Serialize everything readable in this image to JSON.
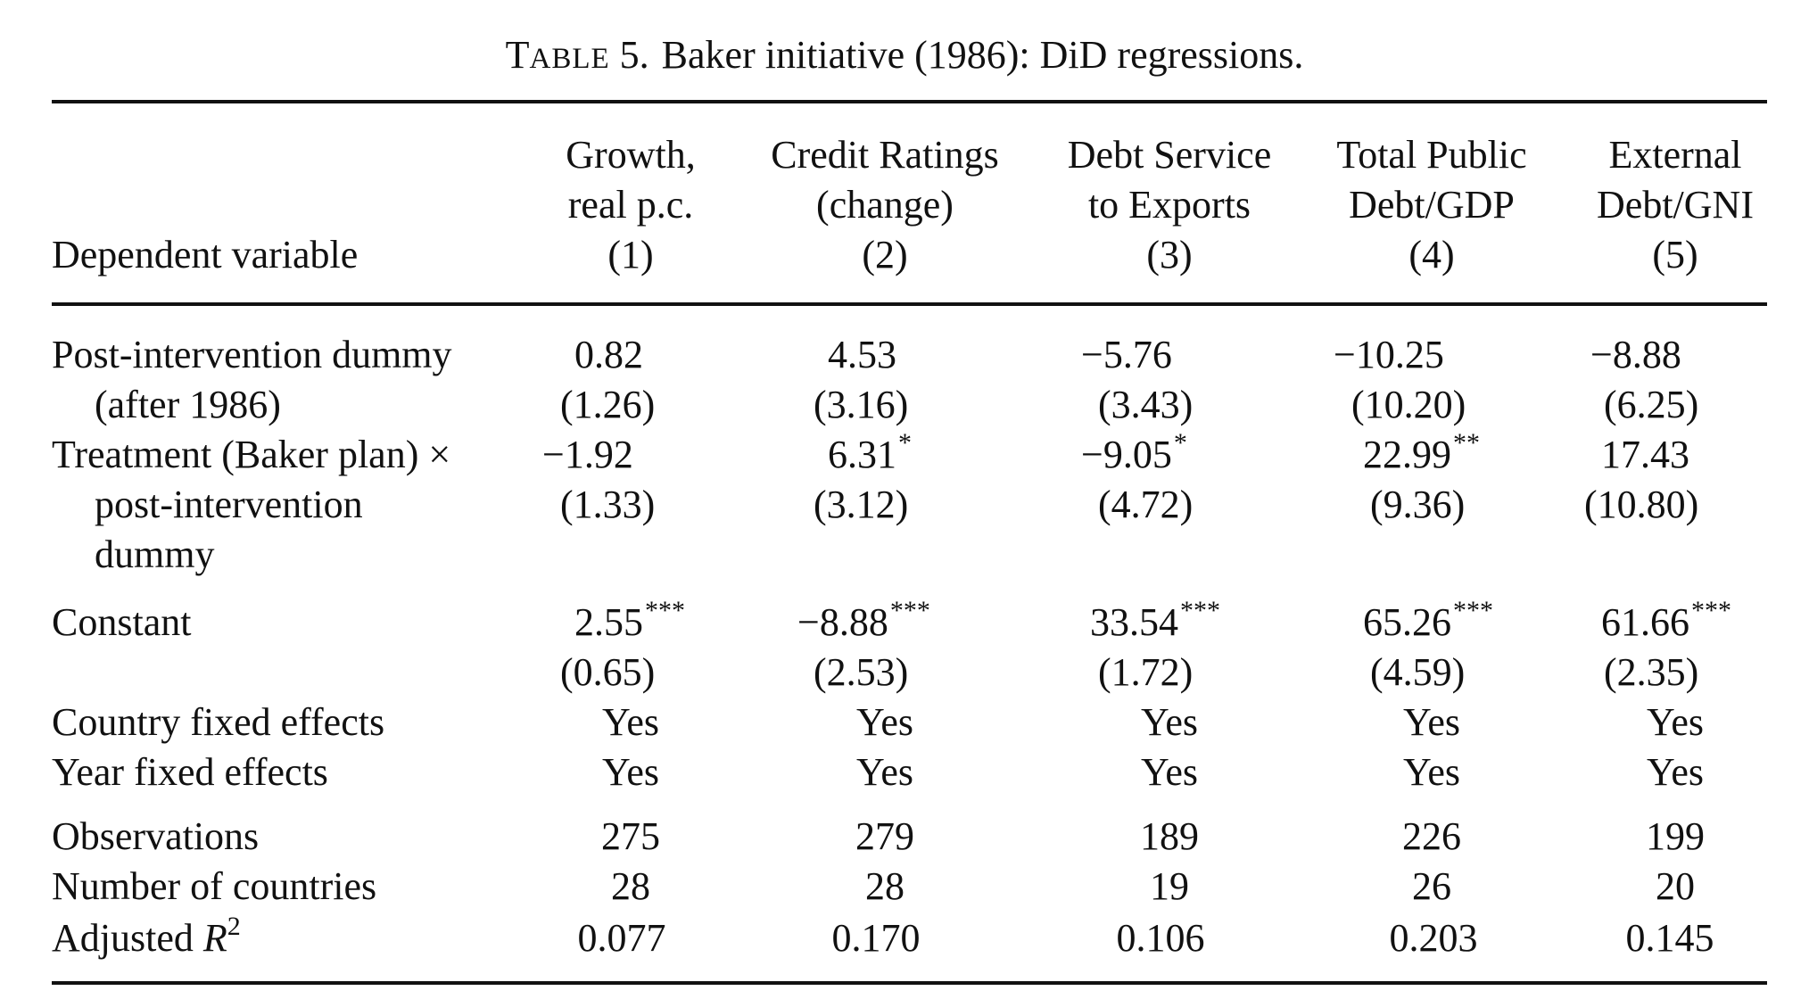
{
  "caption": {
    "table_label_initial": "T",
    "table_label_rest": "ABLE",
    "table_number": "5.",
    "title": "Baker initiative (1986): DiD regressions."
  },
  "header": {
    "row_label": "Dependent variable",
    "columns": [
      {
        "line1": "Growth,",
        "line2": "real p.c.",
        "number": "(1)"
      },
      {
        "line1": "Credit Ratings",
        "line2": "(change)",
        "number": "(2)"
      },
      {
        "line1": "Debt Service",
        "line2": "to Exports",
        "number": "(3)"
      },
      {
        "line1": "Total Public",
        "line2": "Debt/GDP",
        "number": "(4)"
      },
      {
        "line1": "External",
        "line2": "Debt/GNI",
        "number": "(5)"
      }
    ]
  },
  "rows": {
    "post": {
      "label_line1": "Post-intervention dummy",
      "label_line2": "(after 1986)",
      "coef": [
        {
          "value": "0.82",
          "stars": ""
        },
        {
          "value": "4.53",
          "stars": ""
        },
        {
          "value": "−5.76",
          "stars": ""
        },
        {
          "value": "−10.25",
          "stars": ""
        },
        {
          "value": "−8.88",
          "stars": ""
        }
      ],
      "se": [
        "(1.26)",
        "(3.16)",
        "(3.43)",
        "(10.20)",
        "(6.25)"
      ]
    },
    "treatment": {
      "label_line1": "Treatment (Baker plan) ×",
      "label_line2": "post-intervention",
      "label_line3": "dummy",
      "coef": [
        {
          "value": "−1.92",
          "stars": ""
        },
        {
          "value": "6.31",
          "stars": "*"
        },
        {
          "value": "−9.05",
          "stars": "*"
        },
        {
          "value": "22.99",
          "stars": "**"
        },
        {
          "value": "17.43",
          "stars": ""
        }
      ],
      "se": [
        "(1.33)",
        "(3.12)",
        "(4.72)",
        "(9.36)",
        "(10.80)"
      ]
    },
    "constant": {
      "label": "Constant",
      "coef": [
        {
          "value": "2.55",
          "stars": "***"
        },
        {
          "value": "−8.88",
          "stars": "***"
        },
        {
          "value": "33.54",
          "stars": "***"
        },
        {
          "value": "65.26",
          "stars": "***"
        },
        {
          "value": "61.66",
          "stars": "***"
        }
      ],
      "se": [
        "(0.65)",
        "(2.53)",
        "(1.72)",
        "(4.59)",
        "(2.35)"
      ]
    },
    "country_fe": {
      "label": "Country fixed effects",
      "values": [
        "Yes",
        "Yes",
        "Yes",
        "Yes",
        "Yes"
      ]
    },
    "year_fe": {
      "label": "Year fixed effects",
      "values": [
        "Yes",
        "Yes",
        "Yes",
        "Yes",
        "Yes"
      ]
    },
    "observations": {
      "label": "Observations",
      "values": [
        "275",
        "279",
        "189",
        "226",
        "199"
      ]
    },
    "countries": {
      "label": "Number of countries",
      "values": [
        "28",
        "28",
        "19",
        "26",
        "20"
      ]
    },
    "r2": {
      "label_prefix": "Adjusted ",
      "label_symbol": "R",
      "label_exp": "2",
      "values": [
        "0.077",
        "0.170",
        "0.106",
        "0.203",
        "0.145"
      ]
    }
  }
}
